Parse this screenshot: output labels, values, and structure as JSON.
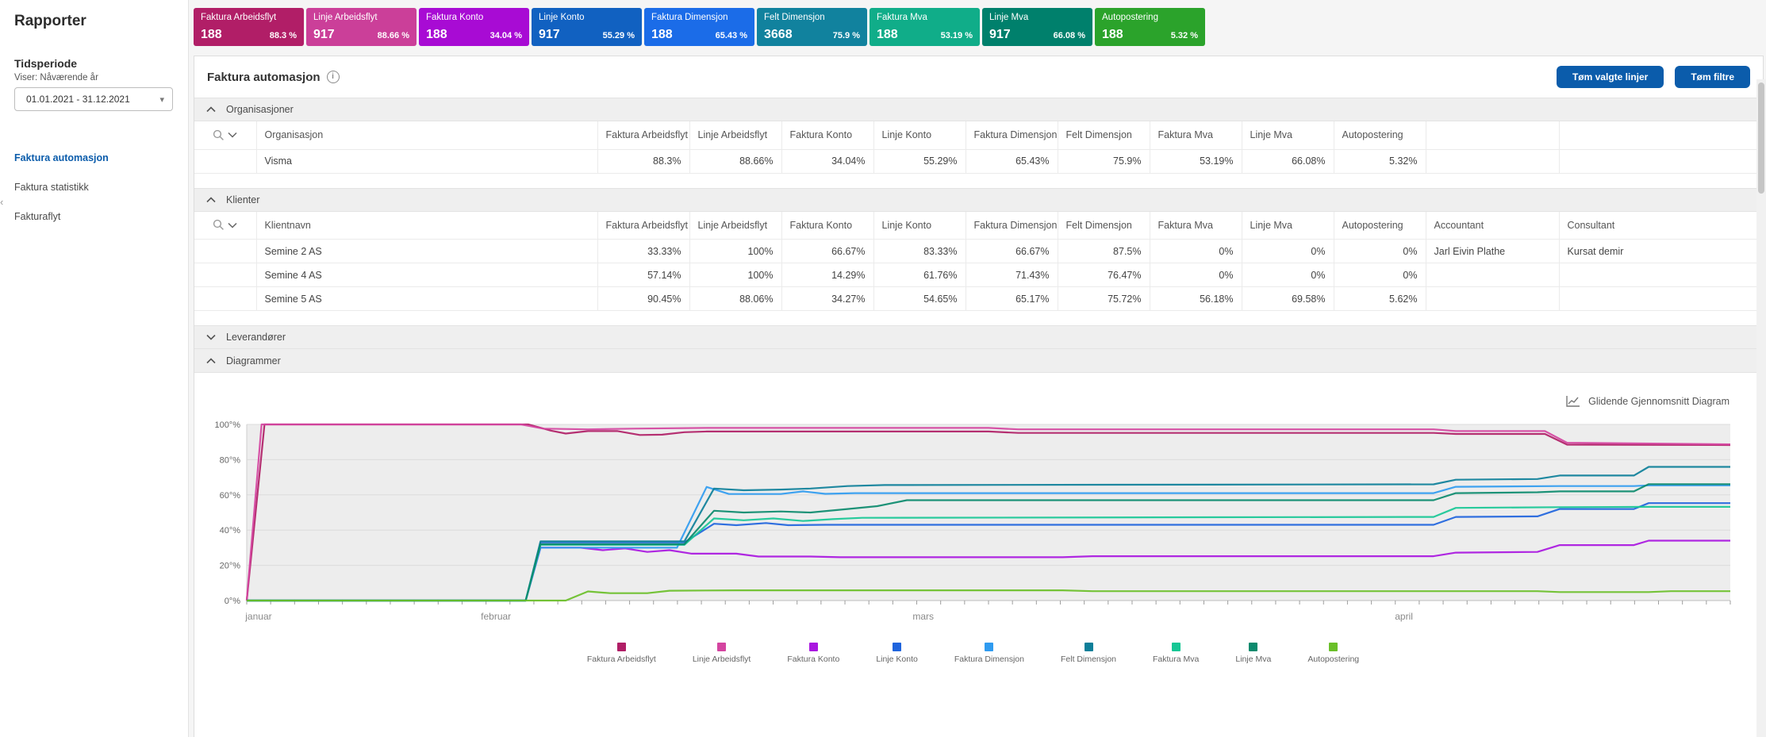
{
  "sidebar": {
    "title": "Rapporter",
    "period_heading": "Tidsperiode",
    "period_caption": "Viser: Nåværende år",
    "period_value": "01.01.2021 - 31.12.2021",
    "nav": [
      {
        "label": "Faktura automasjon",
        "active": true
      },
      {
        "label": "Faktura statistikk",
        "active": false
      },
      {
        "label": "Fakturaflyt",
        "active": false
      }
    ]
  },
  "icons": [
    "chevron-left-icon",
    "chevron-down-icon",
    "chevron-up-icon",
    "search-icon",
    "info-icon",
    "line-chart-icon"
  ],
  "kpi_cards": [
    {
      "label": "Faktura Arbeidsflyt",
      "value": "188",
      "pct": "88.3 %",
      "color": "#b11e67"
    },
    {
      "label": "Linje Arbeidsflyt",
      "value": "917",
      "pct": "88.66 %",
      "color": "#cb3f99"
    },
    {
      "label": "Faktura Konto",
      "value": "188",
      "pct": "34.04 %",
      "color": "#a80bd4"
    },
    {
      "label": "Linje Konto",
      "value": "917",
      "pct": "55.29 %",
      "color": "#1161c1"
    },
    {
      "label": "Faktura Dimensjon",
      "value": "188",
      "pct": "65.43 %",
      "color": "#1b6ce8"
    },
    {
      "label": "Felt Dimensjon",
      "value": "3668",
      "pct": "75.9 %",
      "color": "#11829e"
    },
    {
      "label": "Faktura Mva",
      "value": "188",
      "pct": "53.19 %",
      "color": "#10ad89"
    },
    {
      "label": "Linje Mva",
      "value": "917",
      "pct": "66.08 %",
      "color": "#00806c"
    },
    {
      "label": "Autopostering",
      "value": "188",
      "pct": "5.32 %",
      "color": "#2ba32b"
    }
  ],
  "main": {
    "title": "Faktura automasjon",
    "clear_lines_button": "Tøm valgte linjer",
    "clear_filters_button": "Tøm filtre",
    "accent_color": "#0b5cab"
  },
  "sections": {
    "organisasjoner": {
      "title": "Organisasjoner",
      "expanded": true,
      "table": {
        "columns": [
          "Organisasjon",
          "Faktura Arbeidsflyt",
          "Linje Arbeidsflyt",
          "Faktura Konto",
          "Linje Konto",
          "Faktura Dimensjon",
          "Felt Dimensjon",
          "Faktura Mva",
          "Linje Mva",
          "Autopostering"
        ],
        "rows": [
          [
            "Visma",
            "88.3%",
            "88.66%",
            "34.04%",
            "55.29%",
            "65.43%",
            "75.9%",
            "53.19%",
            "66.08%",
            "5.32%"
          ]
        ]
      }
    },
    "klienter": {
      "title": "Klienter",
      "expanded": true,
      "table": {
        "columns": [
          "Klientnavn",
          "Faktura Arbeidsflyt",
          "Linje Arbeidsflyt",
          "Faktura Konto",
          "Linje Konto",
          "Faktura Dimensjon",
          "Felt Dimensjon",
          "Faktura Mva",
          "Linje Mva",
          "Autopostering",
          "Accountant",
          "Consultant"
        ],
        "rows": [
          [
            "Semine 2 AS",
            "33.33%",
            "100%",
            "66.67%",
            "83.33%",
            "66.67%",
            "87.5%",
            "0%",
            "0%",
            "0%",
            "Jarl Eivin Plathe",
            "Kursat demir"
          ],
          [
            "Semine 4 AS",
            "57.14%",
            "100%",
            "14.29%",
            "61.76%",
            "71.43%",
            "76.47%",
            "0%",
            "0%",
            "0%",
            "",
            ""
          ],
          [
            "Semine 5 AS",
            "90.45%",
            "88.06%",
            "34.27%",
            "54.65%",
            "65.17%",
            "75.72%",
            "56.18%",
            "69.58%",
            "5.62%",
            "",
            ""
          ]
        ]
      }
    },
    "leverandorer": {
      "title": "Leverandører",
      "expanded": false
    },
    "diagrammer": {
      "title": "Diagrammer",
      "expanded": true
    }
  },
  "chart_data": {
    "type": "line",
    "title": "",
    "xlabel": "",
    "ylabel": "",
    "ylim": [
      0,
      100
    ],
    "grid": true,
    "plot_bg": "#ededed",
    "legend_position": "bottom",
    "moving_average_label": "Glidende Gjennomsnitt Diagram",
    "yticks": [
      {
        "value": 0,
        "label": "0°%"
      },
      {
        "value": 20,
        "label": "20°%"
      },
      {
        "value": 40,
        "label": "40°%"
      },
      {
        "value": 60,
        "label": "60°%"
      },
      {
        "value": 80,
        "label": "80°%"
      },
      {
        "value": 100,
        "label": "100°%"
      }
    ],
    "xticks": [
      {
        "label": "januar",
        "x": 0.8
      },
      {
        "label": "februar",
        "x": 16.8
      },
      {
        "label": "mars",
        "x": 45.6
      },
      {
        "label": "april",
        "x": 78
      }
    ],
    "minor_tick_count": 63,
    "series": [
      {
        "name": "Faktura Arbeidsflyt",
        "color": "#b01e66",
        "points": [
          [
            0,
            0
          ],
          [
            1.2,
            100
          ],
          [
            19,
            100
          ],
          [
            20.5,
            96.5
          ],
          [
            21.5,
            94.8
          ],
          [
            23,
            96.2
          ],
          [
            25,
            96.2
          ],
          [
            26.5,
            94
          ],
          [
            28,
            94.2
          ],
          [
            29.5,
            95.6
          ],
          [
            31,
            96
          ],
          [
            50,
            96
          ],
          [
            52,
            95.2
          ],
          [
            80,
            95.2
          ],
          [
            81.5,
            94.6
          ],
          [
            87.5,
            94.6
          ],
          [
            89,
            88.5
          ],
          [
            100,
            88.3
          ]
        ]
      },
      {
        "name": "Linje Arbeidsflyt",
        "color": "#d444a0",
        "points": [
          [
            0,
            0
          ],
          [
            1,
            100
          ],
          [
            18.5,
            100
          ],
          [
            20,
            97.6
          ],
          [
            23,
            97.2
          ],
          [
            26,
            97.6
          ],
          [
            31,
            98
          ],
          [
            50,
            98
          ],
          [
            52,
            97.2
          ],
          [
            80,
            97.2
          ],
          [
            81.5,
            96.2
          ],
          [
            87.5,
            96.2
          ],
          [
            89,
            89.6
          ],
          [
            100,
            88.7
          ]
        ]
      },
      {
        "name": "Faktura Konto",
        "color": "#a916e0",
        "points": [
          [
            0,
            0
          ],
          [
            18.8,
            0
          ],
          [
            19.8,
            30
          ],
          [
            22.5,
            30
          ],
          [
            24,
            28.6
          ],
          [
            25.5,
            29.6
          ],
          [
            27,
            27.6
          ],
          [
            28.5,
            28.6
          ],
          [
            30,
            26.6
          ],
          [
            33,
            26.6
          ],
          [
            34.5,
            25
          ],
          [
            38,
            25
          ],
          [
            40,
            24.6
          ],
          [
            55,
            24.6
          ],
          [
            57,
            25.2
          ],
          [
            80,
            25.2
          ],
          [
            81.5,
            27.2
          ],
          [
            87,
            27.6
          ],
          [
            88.5,
            31.5
          ],
          [
            93.5,
            31.5
          ],
          [
            94.5,
            34
          ],
          [
            100,
            34
          ]
        ]
      },
      {
        "name": "Linje Konto",
        "color": "#1f64dd",
        "points": [
          [
            0,
            0
          ],
          [
            18.8,
            0
          ],
          [
            19.8,
            33
          ],
          [
            29.5,
            33
          ],
          [
            31.5,
            43.6
          ],
          [
            33,
            42.8
          ],
          [
            35,
            44
          ],
          [
            36.5,
            42.8
          ],
          [
            39,
            43
          ],
          [
            80,
            43
          ],
          [
            81.5,
            47.5
          ],
          [
            87,
            47.8
          ],
          [
            88.5,
            52
          ],
          [
            93.5,
            52
          ],
          [
            94.5,
            55.3
          ],
          [
            100,
            55.3
          ]
        ]
      },
      {
        "name": "Faktura Dimensjon",
        "color": "#2f9bf0",
        "points": [
          [
            0,
            0
          ],
          [
            18.8,
            0
          ],
          [
            19.8,
            30
          ],
          [
            29,
            30
          ],
          [
            31,
            64.5
          ],
          [
            32.5,
            60.5
          ],
          [
            36,
            60.5
          ],
          [
            37.5,
            62
          ],
          [
            39,
            60.6
          ],
          [
            41,
            61
          ],
          [
            80,
            61
          ],
          [
            81.5,
            64.6
          ],
          [
            88.5,
            65
          ],
          [
            93.5,
            65
          ],
          [
            94.5,
            65.4
          ],
          [
            100,
            65.4
          ]
        ]
      },
      {
        "name": "Felt Dimensjon",
        "color": "#0d7f99",
        "points": [
          [
            0,
            0
          ],
          [
            18.8,
            0
          ],
          [
            19.8,
            33.6
          ],
          [
            29.5,
            33.6
          ],
          [
            31.5,
            63.6
          ],
          [
            33.5,
            62.6
          ],
          [
            36,
            63
          ],
          [
            38,
            63.6
          ],
          [
            40.5,
            65
          ],
          [
            43,
            65.6
          ],
          [
            80,
            66
          ],
          [
            81.5,
            68.6
          ],
          [
            87,
            69
          ],
          [
            88.5,
            71
          ],
          [
            93.5,
            71
          ],
          [
            94.5,
            75.9
          ],
          [
            100,
            75.9
          ]
        ]
      },
      {
        "name": "Faktura Mva",
        "color": "#17c795",
        "points": [
          [
            0,
            0
          ],
          [
            18.8,
            0
          ],
          [
            19.8,
            31.6
          ],
          [
            29.5,
            31.6
          ],
          [
            31.5,
            46.6
          ],
          [
            33.5,
            45.6
          ],
          [
            35.5,
            46.6
          ],
          [
            37.5,
            45.2
          ],
          [
            39.5,
            46.2
          ],
          [
            41.5,
            47
          ],
          [
            80,
            47.5
          ],
          [
            81.5,
            52.6
          ],
          [
            88.5,
            53
          ],
          [
            94.5,
            53.2
          ],
          [
            100,
            53.2
          ]
        ]
      },
      {
        "name": "Linje Mva",
        "color": "#0b8a6d",
        "points": [
          [
            0,
            0
          ],
          [
            18.8,
            0
          ],
          [
            19.8,
            32
          ],
          [
            29.5,
            32
          ],
          [
            31.5,
            51
          ],
          [
            33.5,
            50
          ],
          [
            36,
            50.6
          ],
          [
            38,
            50
          ],
          [
            40.5,
            52
          ],
          [
            42.5,
            53.6
          ],
          [
            44.5,
            57
          ],
          [
            80,
            57
          ],
          [
            81.5,
            61
          ],
          [
            87,
            61.5
          ],
          [
            88.5,
            62
          ],
          [
            93.5,
            62
          ],
          [
            94.5,
            66.1
          ],
          [
            100,
            66.1
          ]
        ]
      },
      {
        "name": "Autopostering",
        "color": "#6abf28",
        "points": [
          [
            0,
            0
          ],
          [
            21.5,
            0
          ],
          [
            23,
            5.2
          ],
          [
            24.5,
            4.2
          ],
          [
            27,
            4.2
          ],
          [
            28.5,
            5.6
          ],
          [
            33,
            5.8
          ],
          [
            55,
            5.8
          ],
          [
            57,
            5.3
          ],
          [
            87,
            5.3
          ],
          [
            88.5,
            4.8
          ],
          [
            94.5,
            4.8
          ],
          [
            96,
            5.3
          ],
          [
            100,
            5.3
          ]
        ]
      }
    ]
  }
}
